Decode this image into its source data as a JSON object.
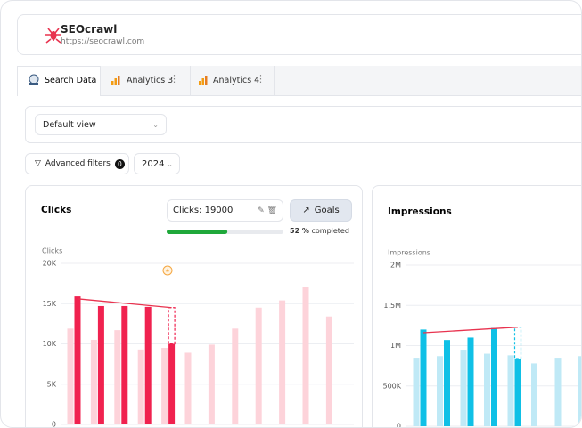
{
  "header": {
    "title": "SEOcrawl",
    "url": "https://seocrawl.com"
  },
  "tabs": [
    "Search Data",
    "Analytics 3",
    "Analytics 4"
  ],
  "view_select": "Default view",
  "filters": {
    "label": "Advanced filters",
    "count": 0,
    "year": "2024"
  },
  "charts": [
    {
      "title": "Clicks",
      "goal_input": "Clicks: 19000",
      "goal_button": "Goals",
      "progress": {
        "value": 52,
        "label": "52 %"
      },
      "progress_text": "completed",
      "chart_data": {
        "type": "bar",
        "y_label": "Clicks",
        "ylim": [
          0,
          20000
        ],
        "yticks": [
          {
            "value": 0,
            "label": "0"
          },
          {
            "value": 5000,
            "label": "5K"
          },
          {
            "value": 10000,
            "label": "10K"
          },
          {
            "value": 15000,
            "label": "15K"
          },
          {
            "value": 20000,
            "label": "20K"
          }
        ],
        "grid": true,
        "series": [
          {
            "color": "#fdd3da",
            "values": [
              11900,
              10500,
              11700,
              9300,
              9500,
              8900,
              9900,
              11900,
              14500,
              15400,
              17100,
              13400
            ]
          },
          {
            "color": "#f0224f",
            "values": [
              15900,
              14700,
              14700,
              14600,
              10000,
              null,
              null,
              null,
              null,
              null,
              null,
              null
            ]
          }
        ],
        "projection": 14500,
        "trend": [
          15600,
          14500
        ],
        "trend_color": "#e8334f"
      }
    },
    {
      "title": "Impressions",
      "chart_data": {
        "type": "bar",
        "y_label": "Impressions",
        "ylim": [
          0,
          2000000
        ],
        "yticks": [
          {
            "value": 0,
            "label": "0"
          },
          {
            "value": 500000,
            "label": "500K"
          },
          {
            "value": 1000000,
            "label": "1M"
          },
          {
            "value": 1500000,
            "label": "1.5M"
          },
          {
            "value": 2000000,
            "label": "2M"
          }
        ],
        "grid": true,
        "series": [
          {
            "color": "#bfe9f6",
            "values": [
              850000,
              870000,
              950000,
              900000,
              880000,
              780000,
              850000,
              870000
            ]
          },
          {
            "color": "#0fc0e6",
            "values": [
              1200000,
              1070000,
              1100000,
              1220000,
              840000,
              null,
              null,
              null
            ]
          }
        ],
        "projection": 1230000,
        "trend": [
          1160000,
          1230000
        ],
        "trend_color": "#e8334f"
      }
    }
  ]
}
